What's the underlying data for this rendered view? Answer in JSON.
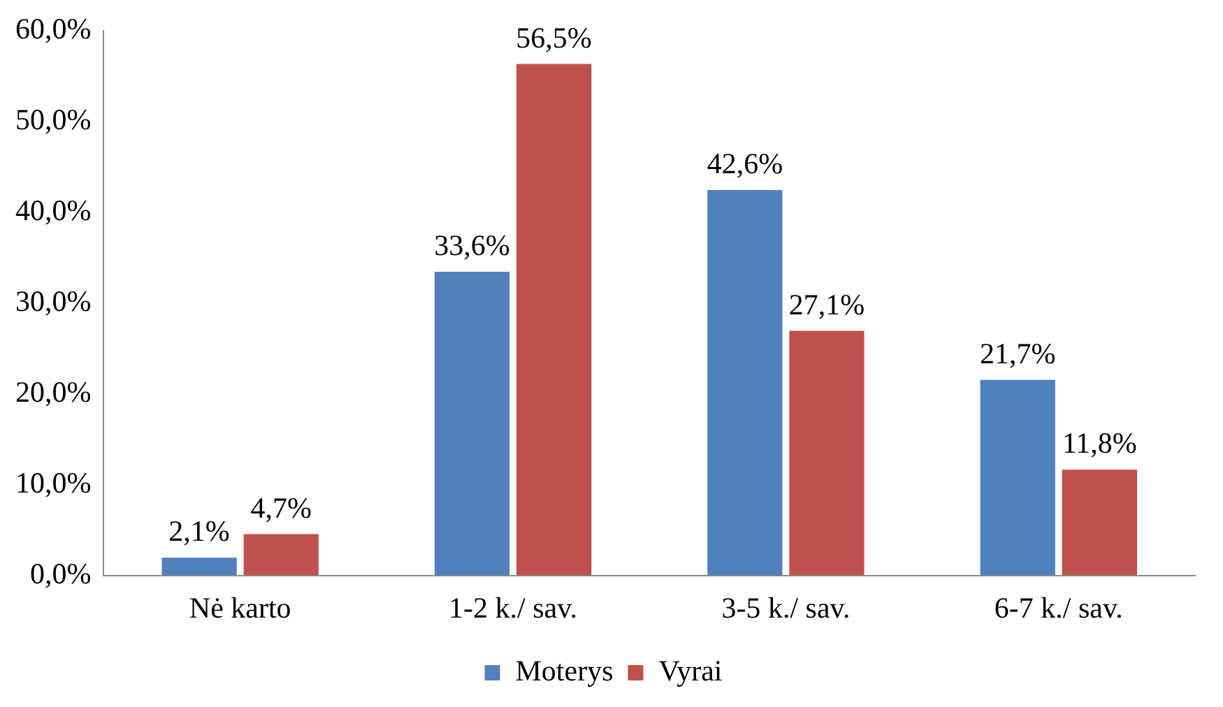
{
  "chart_data": {
    "type": "bar",
    "categories": [
      "Nė karto",
      "1-2 k./ sav.",
      "3-5 k./ sav.",
      "6-7 k./ sav."
    ],
    "series": [
      {
        "name": "Moterys",
        "color": "#4f81bd",
        "values": [
          2.1,
          33.6,
          42.6,
          21.7
        ],
        "value_labels": [
          "2,1%",
          "33,6%",
          "42,6%",
          "21,7%"
        ]
      },
      {
        "name": "Vyrai",
        "color": "#c0504d",
        "values": [
          4.7,
          56.5,
          27.1,
          11.8
        ],
        "value_labels": [
          "4,7%",
          "56,5%",
          "27,1%",
          "11,8%"
        ]
      }
    ],
    "ylim": [
      0,
      60
    ],
    "yticks": [
      {
        "value": 0,
        "label": "0,0%"
      },
      {
        "value": 10,
        "label": "10,0%"
      },
      {
        "value": 20,
        "label": "20,0%"
      },
      {
        "value": 30,
        "label": "30,0%"
      },
      {
        "value": 40,
        "label": "40,0%"
      },
      {
        "value": 50,
        "label": "50,0%"
      },
      {
        "value": 60,
        "label": "60,0%"
      }
    ],
    "grid": false,
    "legend": "bottom"
  }
}
